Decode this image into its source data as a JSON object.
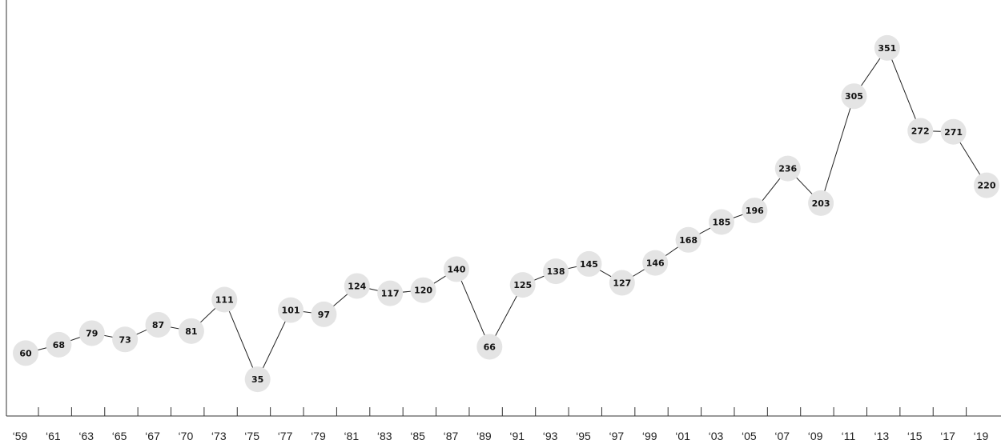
{
  "chart_data": {
    "type": "line",
    "title": "",
    "xlabel": "",
    "ylabel": "",
    "grid": false,
    "legend": "none",
    "colors": {
      "line": "#222222",
      "marker": "#e4e4e4",
      "axis": "#333333",
      "label": "#111111"
    },
    "ylim": [
      0,
      370
    ],
    "x_ticks": [
      "‘59",
      "‘61",
      "‘63",
      "‘65",
      "‘67",
      "‘70",
      "‘73",
      "‘75",
      "‘77",
      "‘79",
      "‘81",
      "‘83",
      "‘85",
      "‘87",
      "‘89",
      "‘91",
      "‘93",
      "‘95",
      "‘97",
      "‘99",
      "‘01",
      "‘03",
      "‘05",
      "‘07",
      "‘09",
      "‘11",
      "‘13",
      "‘15",
      "‘17",
      "‘19"
    ],
    "values": [
      60,
      68,
      79,
      73,
      87,
      81,
      111,
      35,
      101,
      97,
      124,
      117,
      120,
      140,
      66,
      125,
      138,
      145,
      127,
      146,
      168,
      185,
      196,
      236,
      203,
      305,
      351,
      272,
      271,
      220
    ]
  }
}
